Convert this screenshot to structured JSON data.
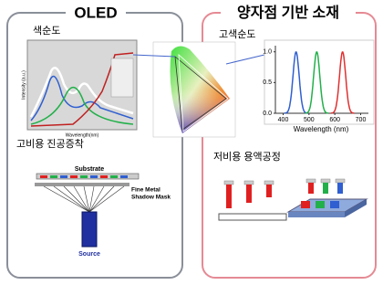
{
  "title_left": "OLED",
  "title_right": "양자점 기반 소재",
  "left": {
    "purity": "색순도",
    "oled_chart": {
      "x_label": "Wavelength(nm)",
      "y_label": "Intensity (a.u.)"
    },
    "process": "고비용 진공증착",
    "substrate": "Substrate",
    "mask_lines": [
      "Fine Metal",
      "Shadow Mask"
    ],
    "source": "Source"
  },
  "right": {
    "purity": "고색순도",
    "process": "저비용 용액공정",
    "qd_chart": {
      "x_label": "Wavelength (nm)",
      "xlim": [
        370,
        730
      ],
      "ylim": [
        0,
        1.1
      ],
      "xticks": [
        400,
        500,
        600,
        700
      ],
      "yticks": [
        {
          "value": 0,
          "label": "0.0"
        },
        {
          "value": 0.5,
          "label": "0.5"
        },
        {
          "value": 1,
          "label": "1.0"
        }
      ],
      "series": [
        {
          "color": "#2f5fd0",
          "peak": 450,
          "height": 1.0
        },
        {
          "color": "#22b04a",
          "peak": 530,
          "height": 1.0
        },
        {
          "color": "#e03030",
          "peak": 630,
          "height": 1.0
        }
      ]
    }
  }
}
